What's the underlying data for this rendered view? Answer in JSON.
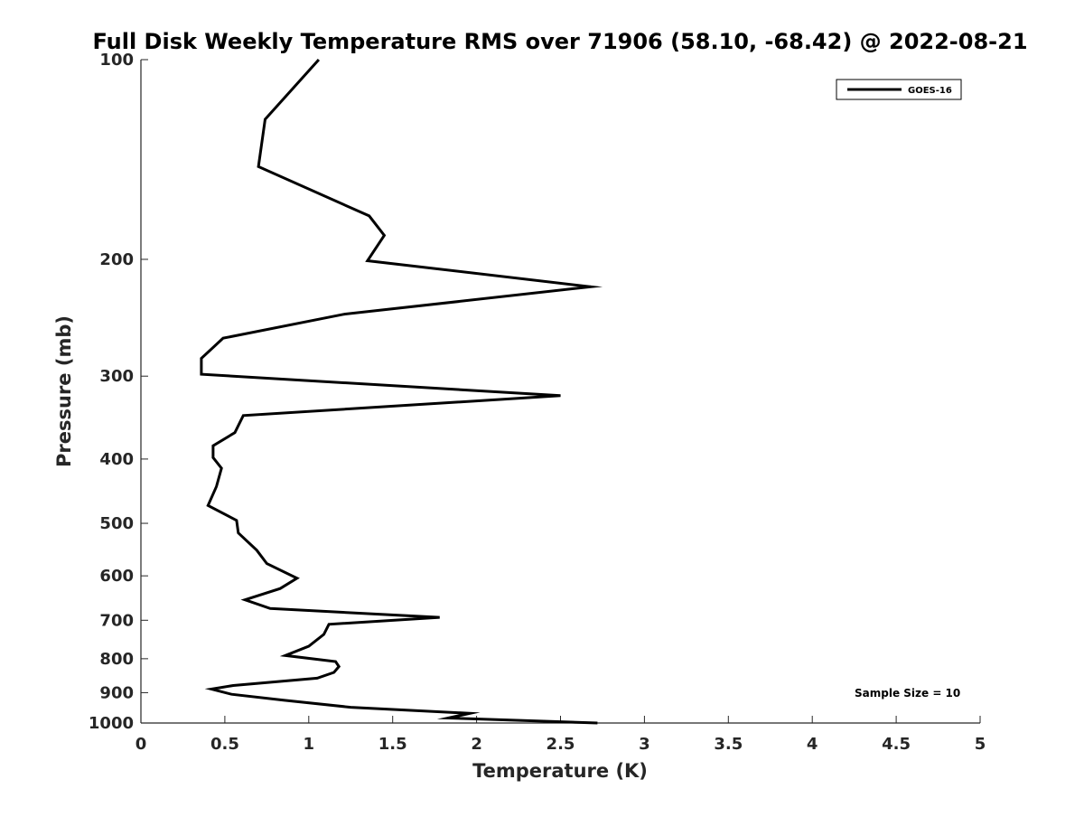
{
  "chart_data": {
    "type": "line",
    "title": "Full Disk Weekly Temperature RMS over 71906 (58.10, -68.42) @ 2022-08-21",
    "xlabel": "Temperature (K)",
    "ylabel": "Pressure (mb)",
    "xlim": [
      0,
      5
    ],
    "ylim": [
      100,
      1000
    ],
    "y_scale": "log",
    "y_reversed": true,
    "grid": false,
    "legend_position": "top-right",
    "x_ticks": [
      0,
      0.5,
      1,
      1.5,
      2,
      2.5,
      3,
      3.5,
      4,
      4.5,
      5
    ],
    "x_tick_labels": [
      "0",
      "0.5",
      "1",
      "1.5",
      "2",
      "2.5",
      "3",
      "3.5",
      "4",
      "4.5",
      "5"
    ],
    "y_ticks": [
      100,
      200,
      300,
      400,
      500,
      600,
      700,
      800,
      900,
      1000
    ],
    "y_tick_labels": [
      "100",
      "200",
      "300",
      "400",
      "500",
      "600",
      "700",
      "800",
      "900",
      "1000"
    ],
    "series": [
      {
        "name": "GOES-16",
        "color": "#000000",
        "x": [
          1.06,
          0.74,
          0.7,
          1.36,
          1.45,
          1.35,
          2.68,
          1.21,
          0.49,
          0.36,
          0.36,
          2.5,
          0.61,
          0.56,
          0.43,
          0.43,
          0.48,
          0.45,
          0.4,
          0.57,
          0.58,
          0.69,
          0.75,
          0.93,
          0.83,
          0.62,
          0.77,
          1.78,
          1.12,
          1.09,
          1.0,
          0.86,
          1.16,
          1.18,
          1.15,
          1.05,
          0.55,
          0.42,
          0.54,
          0.85,
          1.25,
          1.96,
          1.83,
          2.72
        ],
        "y": [
          100,
          123,
          145,
          172,
          184,
          201,
          220,
          242,
          263,
          282,
          298,
          321,
          344,
          365,
          382,
          398,
          413,
          440,
          470,
          495,
          517,
          549,
          575,
          605,
          627,
          652,
          672,
          693,
          710,
          735,
          766,
          791,
          808,
          822,
          839,
          856,
          878,
          889,
          905,
          924,
          947,
          967,
          983,
          1000
        ]
      }
    ],
    "annotations": [
      "Sample Size = 10"
    ]
  }
}
